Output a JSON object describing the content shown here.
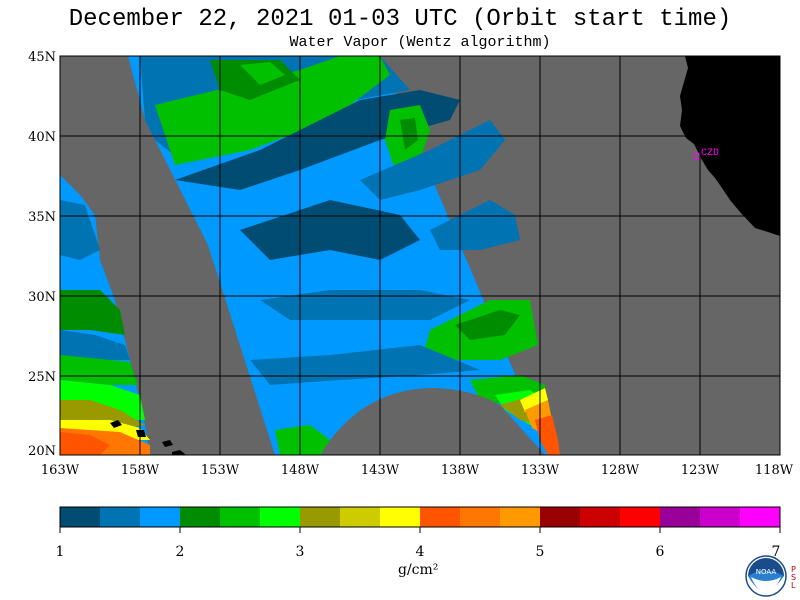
{
  "header": {
    "title": "December 22, 2021  01-03 UTC  (Orbit start time)",
    "subtitle": "Water Vapor (Wentz algorithm)"
  },
  "map": {
    "lat_labels": [
      "45N",
      "40N",
      "35N",
      "30N",
      "25N",
      "20N"
    ],
    "lon_labels": [
      "163W",
      "158W",
      "153W",
      "148W",
      "143W",
      "138W",
      "133W",
      "128W",
      "123W",
      "118W"
    ],
    "station_label": "CZD",
    "colors": {
      "no_data": "#666666",
      "land": "#000000",
      "station": "#ff00ff"
    }
  },
  "colorbar": {
    "tick_labels": [
      "1",
      "2",
      "3",
      "4",
      "5",
      "6",
      "7"
    ],
    "units": "g/cm²",
    "colors": [
      "#004c73",
      "#0073b3",
      "#0099ff",
      "#008c00",
      "#00c000",
      "#00ff00",
      "#999900",
      "#cccc00",
      "#ffff00",
      "#ff5500",
      "#ff7700",
      "#ff9900",
      "#990000",
      "#cc0000",
      "#ff0000",
      "#990099",
      "#cc00cc",
      "#ff00ff"
    ]
  },
  "logo": {
    "name": "NOAA",
    "lab": "PSL"
  }
}
